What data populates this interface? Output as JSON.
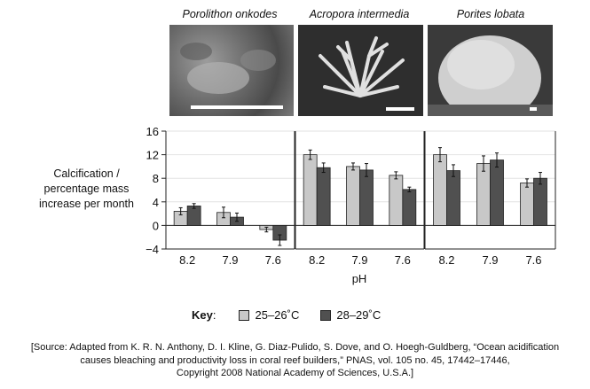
{
  "species": [
    {
      "name": "Porolithon onkodes"
    },
    {
      "name": "Acropora intermedia"
    },
    {
      "name": "Porites lobata"
    }
  ],
  "ylabel_lines": [
    "Calcification /",
    "percentage mass",
    "increase per month"
  ],
  "xlabel": "pH",
  "key": {
    "title": "Key",
    "colon": ":",
    "series1": "25–26˚C",
    "series2": "28–29˚C"
  },
  "colors": {
    "series1": "#c8c8c8",
    "series2": "#505050",
    "axis": "#222222"
  },
  "source_lines": [
    "[Source: Adapted from K. R. N. Anthony, D. I. Kline, G. Diaz-Pulido, S. Dove, and O. Hoegh-Guldberg, “Ocean acidification",
    "causes bleaching and productivity loss in coral reef builders,” PNAS, vol. 105 no. 45, 17442–17446,",
    "Copyright 2008 National Academy of Sciences, U.S.A.]"
  ],
  "chart_data": {
    "type": "bar",
    "ylim": [
      -4,
      16
    ],
    "yticks": [
      "16",
      "12",
      "8",
      "4",
      "0",
      "−4"
    ],
    "grid": true,
    "panels": [
      {
        "species": "Porolithon onkodes",
        "categories": [
          "8.2",
          "7.9",
          "7.6"
        ],
        "series": [
          {
            "name": "25–26˚C",
            "values": [
              2.4,
              2.2,
              -0.7
            ],
            "errors": [
              0.6,
              0.9,
              0.4
            ]
          },
          {
            "name": "28–29˚C",
            "values": [
              3.3,
              1.4,
              -2.5
            ],
            "errors": [
              0.4,
              0.7,
              0.9
            ]
          }
        ]
      },
      {
        "species": "Acropora intermedia",
        "categories": [
          "8.2",
          "7.9",
          "7.6"
        ],
        "series": [
          {
            "name": "25–26˚C",
            "values": [
              12.0,
              10.0,
              8.5
            ],
            "errors": [
              0.8,
              0.6,
              0.6
            ]
          },
          {
            "name": "28–29˚C",
            "values": [
              9.8,
              9.4,
              6.1
            ],
            "errors": [
              0.8,
              1.1,
              0.4
            ]
          }
        ]
      },
      {
        "species": "Porites lobata",
        "categories": [
          "8.2",
          "7.9",
          "7.6"
        ],
        "series": [
          {
            "name": "25–26˚C",
            "values": [
              12.0,
              10.5,
              7.2
            ],
            "errors": [
              1.2,
              1.3,
              0.7
            ]
          },
          {
            "name": "28–29˚C",
            "values": [
              9.3,
              11.1,
              8.0
            ],
            "errors": [
              1.0,
              1.2,
              1.0
            ]
          }
        ]
      }
    ]
  }
}
